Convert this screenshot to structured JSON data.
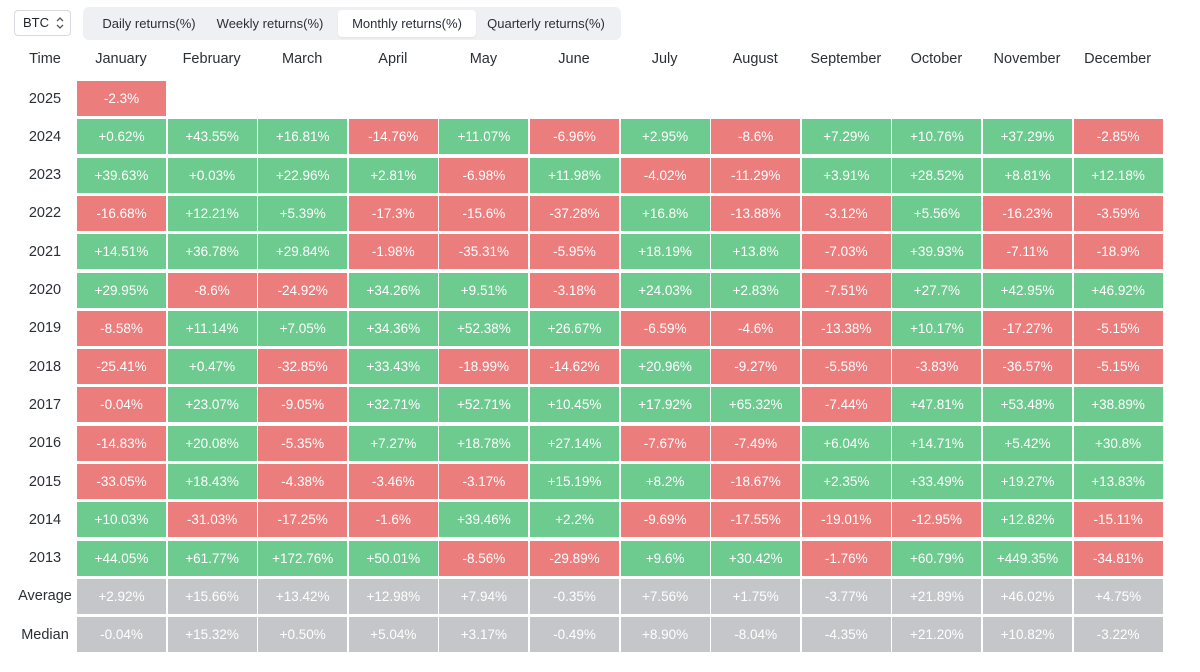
{
  "controls": {
    "asset": "BTC",
    "tabs": [
      {
        "label": "Daily returns(%)",
        "active": false
      },
      {
        "label": "Weekly returns(%)",
        "active": false
      },
      {
        "label": "Monthly returns(%)",
        "active": true
      },
      {
        "label": "Quarterly returns(%)",
        "active": false
      }
    ]
  },
  "colors": {
    "positive": "#6dcb8f",
    "negative": "#ec7d7d",
    "summary": "#c4c6c9",
    "text": "#2b2f36"
  },
  "chart_data": {
    "type": "heatmap",
    "corner_label": "Time",
    "columns": [
      "January",
      "February",
      "March",
      "April",
      "May",
      "June",
      "July",
      "August",
      "September",
      "October",
      "November",
      "December"
    ],
    "rows": [
      {
        "label": "2025",
        "kind": "year",
        "values": [
          "-2.3%"
        ]
      },
      {
        "label": "2024",
        "kind": "year",
        "values": [
          "+0.62%",
          "+43.55%",
          "+16.81%",
          "-14.76%",
          "+11.07%",
          "-6.96%",
          "+2.95%",
          "-8.6%",
          "+7.29%",
          "+10.76%",
          "+37.29%",
          "-2.85%"
        ]
      },
      {
        "label": "2023",
        "kind": "year",
        "values": [
          "+39.63%",
          "+0.03%",
          "+22.96%",
          "+2.81%",
          "-6.98%",
          "+11.98%",
          "-4.02%",
          "-11.29%",
          "+3.91%",
          "+28.52%",
          "+8.81%",
          "+12.18%"
        ]
      },
      {
        "label": "2022",
        "kind": "year",
        "values": [
          "-16.68%",
          "+12.21%",
          "+5.39%",
          "-17.3%",
          "-15.6%",
          "-37.28%",
          "+16.8%",
          "-13.88%",
          "-3.12%",
          "+5.56%",
          "-16.23%",
          "-3.59%"
        ]
      },
      {
        "label": "2021",
        "kind": "year",
        "values": [
          "+14.51%",
          "+36.78%",
          "+29.84%",
          "-1.98%",
          "-35.31%",
          "-5.95%",
          "+18.19%",
          "+13.8%",
          "-7.03%",
          "+39.93%",
          "-7.11%",
          "-18.9%"
        ]
      },
      {
        "label": "2020",
        "kind": "year",
        "values": [
          "+29.95%",
          "-8.6%",
          "-24.92%",
          "+34.26%",
          "+9.51%",
          "-3.18%",
          "+24.03%",
          "+2.83%",
          "-7.51%",
          "+27.7%",
          "+42.95%",
          "+46.92%"
        ]
      },
      {
        "label": "2019",
        "kind": "year",
        "values": [
          "-8.58%",
          "+11.14%",
          "+7.05%",
          "+34.36%",
          "+52.38%",
          "+26.67%",
          "-6.59%",
          "-4.6%",
          "-13.38%",
          "+10.17%",
          "-17.27%",
          "-5.15%"
        ]
      },
      {
        "label": "2018",
        "kind": "year",
        "values": [
          "-25.41%",
          "+0.47%",
          "-32.85%",
          "+33.43%",
          "-18.99%",
          "-14.62%",
          "+20.96%",
          "-9.27%",
          "-5.58%",
          "-3.83%",
          "-36.57%",
          "-5.15%"
        ]
      },
      {
        "label": "2017",
        "kind": "year",
        "values": [
          "-0.04%",
          "+23.07%",
          "-9.05%",
          "+32.71%",
          "+52.71%",
          "+10.45%",
          "+17.92%",
          "+65.32%",
          "-7.44%",
          "+47.81%",
          "+53.48%",
          "+38.89%"
        ]
      },
      {
        "label": "2016",
        "kind": "year",
        "values": [
          "-14.83%",
          "+20.08%",
          "-5.35%",
          "+7.27%",
          "+18.78%",
          "+27.14%",
          "-7.67%",
          "-7.49%",
          "+6.04%",
          "+14.71%",
          "+5.42%",
          "+30.8%"
        ]
      },
      {
        "label": "2015",
        "kind": "year",
        "values": [
          "-33.05%",
          "+18.43%",
          "-4.38%",
          "-3.46%",
          "-3.17%",
          "+15.19%",
          "+8.2%",
          "-18.67%",
          "+2.35%",
          "+33.49%",
          "+19.27%",
          "+13.83%"
        ]
      },
      {
        "label": "2014",
        "kind": "year",
        "values": [
          "+10.03%",
          "-31.03%",
          "-17.25%",
          "-1.6%",
          "+39.46%",
          "+2.2%",
          "-9.69%",
          "-17.55%",
          "-19.01%",
          "-12.95%",
          "+12.82%",
          "-15.11%"
        ]
      },
      {
        "label": "2013",
        "kind": "year",
        "values": [
          "+44.05%",
          "+61.77%",
          "+172.76%",
          "+50.01%",
          "-8.56%",
          "-29.89%",
          "+9.6%",
          "+30.42%",
          "-1.76%",
          "+60.79%",
          "+449.35%",
          "-34.81%"
        ]
      },
      {
        "label": "Average",
        "kind": "summary",
        "values": [
          "+2.92%",
          "+15.66%",
          "+13.42%",
          "+12.98%",
          "+7.94%",
          "-0.35%",
          "+7.56%",
          "+1.75%",
          "-3.77%",
          "+21.89%",
          "+46.02%",
          "+4.75%"
        ]
      },
      {
        "label": "Median",
        "kind": "summary",
        "values": [
          "-0.04%",
          "+15.32%",
          "+0.50%",
          "+5.04%",
          "+3.17%",
          "-0.49%",
          "+8.90%",
          "-8.04%",
          "-4.35%",
          "+21.20%",
          "+10.82%",
          "-3.22%"
        ]
      }
    ]
  }
}
